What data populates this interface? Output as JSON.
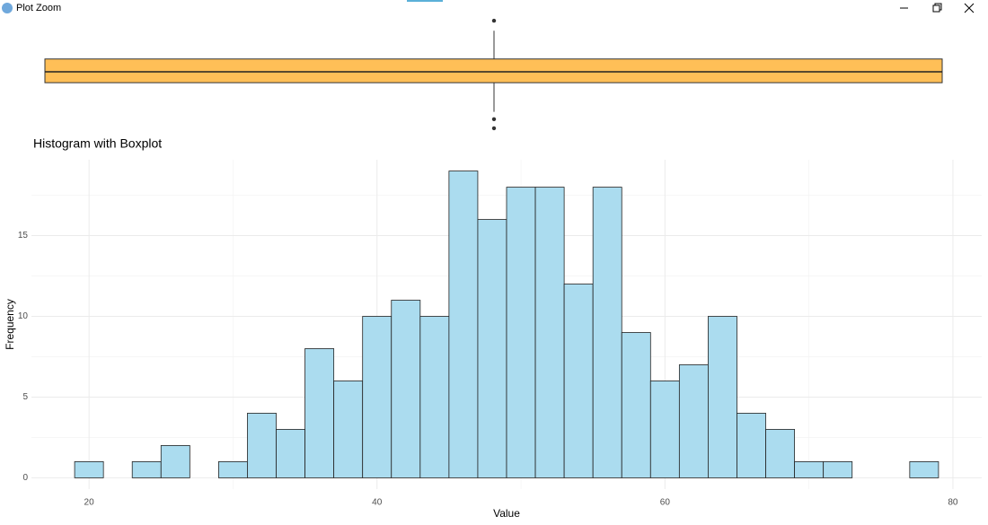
{
  "window": {
    "title": "Plot Zoom"
  },
  "chart_data": [
    {
      "type": "boxplot",
      "q1": 45,
      "median": 51,
      "q3": 58,
      "whisker_low": 29,
      "whisker_high": 73.5,
      "outliers": [
        79,
        25,
        20
      ],
      "color": "#ffbf57",
      "ylim": [
        17.5,
        81.5
      ]
    },
    {
      "type": "histogram",
      "title": "Histogram with Boxplot",
      "xlabel": "Value",
      "ylabel": "Frequency",
      "bins": [
        19,
        21,
        23,
        25,
        27,
        29,
        31,
        33,
        35,
        37,
        39,
        41,
        43,
        45,
        47,
        49,
        51,
        53,
        55,
        57,
        59,
        61,
        63,
        65,
        67,
        69,
        71,
        73,
        75,
        77,
        79
      ],
      "values": [
        1,
        0,
        1,
        2,
        0,
        1,
        4,
        3,
        8,
        6,
        10,
        11,
        10,
        19,
        16,
        18,
        18,
        12,
        18,
        9,
        6,
        7,
        10,
        4,
        3,
        1,
        1,
        0,
        0,
        1
      ],
      "color": "#abdcef",
      "xlim": [
        16,
        82
      ],
      "ylim": [
        -0.7,
        19.7
      ],
      "xticks": [
        20,
        40,
        60,
        80
      ],
      "yticks": [
        0,
        5,
        10,
        15
      ],
      "x_minor_ticks": [
        30,
        50,
        70
      ],
      "y_minor_ticks": [
        2.5,
        7.5,
        12.5,
        17.5
      ],
      "grid": true
    }
  ]
}
